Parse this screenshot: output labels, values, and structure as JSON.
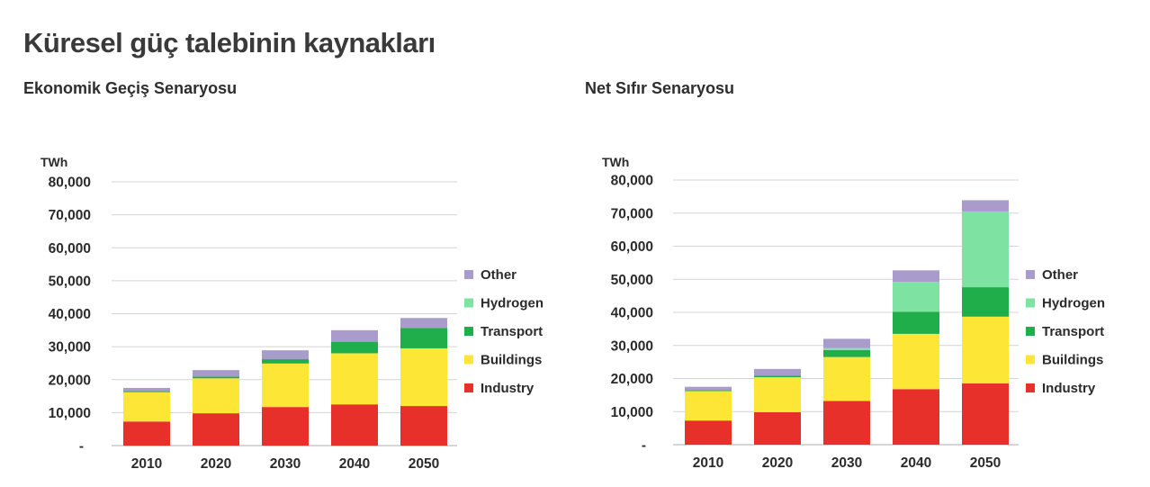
{
  "title": "Küresel güç talebinin kaynakları",
  "colors": {
    "Industry": "#e8302a",
    "Buildings": "#fde636",
    "Transport": "#1fae4a",
    "Hydrogen": "#7ee2a2",
    "Other": "#a99bcc"
  },
  "chart_data": [
    {
      "type": "bar",
      "stacked": true,
      "title": "Ekonomik Geçiş Senaryosu",
      "ylabel": "TWh",
      "xlabel": "",
      "ylim": [
        0,
        80000
      ],
      "yticks": [
        0,
        10000,
        20000,
        30000,
        40000,
        50000,
        60000,
        70000,
        80000
      ],
      "ytick_labels": [
        "-",
        "10,000",
        "20,000",
        "30,000",
        "40,000",
        "50,000",
        "60,000",
        "70,000",
        "80,000"
      ],
      "grid": true,
      "legend_position": "right",
      "legend_order": [
        "Other",
        "Hydrogen",
        "Transport",
        "Buildings",
        "Industry"
      ],
      "categories": [
        "2010",
        "2020",
        "2030",
        "2040",
        "2050"
      ],
      "series": [
        {
          "name": "Industry",
          "values": [
            7300,
            9800,
            11700,
            12500,
            12000
          ]
        },
        {
          "name": "Buildings",
          "values": [
            8900,
            10600,
            13200,
            15500,
            17500
          ]
        },
        {
          "name": "Transport",
          "values": [
            300,
            500,
            1300,
            3500,
            6200
          ]
        },
        {
          "name": "Hydrogen",
          "values": [
            0,
            0,
            0,
            0,
            0
          ]
        },
        {
          "name": "Other",
          "values": [
            1000,
            2000,
            2700,
            3500,
            3000
          ]
        }
      ]
    },
    {
      "type": "bar",
      "stacked": true,
      "title": "Net Sıfır Senaryosu",
      "ylabel": "TWh",
      "xlabel": "",
      "ylim": [
        0,
        80000
      ],
      "yticks": [
        0,
        10000,
        20000,
        30000,
        40000,
        50000,
        60000,
        70000,
        80000
      ],
      "ytick_labels": [
        "-",
        "10,000",
        "20,000",
        "30,000",
        "40,000",
        "50,000",
        "60,000",
        "70,000",
        "80,000"
      ],
      "grid": true,
      "legend_position": "right",
      "legend_order": [
        "Other",
        "Hydrogen",
        "Transport",
        "Buildings",
        "Industry"
      ],
      "categories": [
        "2010",
        "2020",
        "2030",
        "2040",
        "2050"
      ],
      "series": [
        {
          "name": "Industry",
          "values": [
            7300,
            9800,
            13200,
            16800,
            18500
          ]
        },
        {
          "name": "Buildings",
          "values": [
            8900,
            10600,
            13300,
            16700,
            20200
          ]
        },
        {
          "name": "Transport",
          "values": [
            300,
            500,
            2100,
            6700,
            8900
          ]
        },
        {
          "name": "Hydrogen",
          "values": [
            0,
            0,
            600,
            9000,
            22900
          ]
        },
        {
          "name": "Other",
          "values": [
            1000,
            2000,
            2800,
            3500,
            3400
          ]
        }
      ]
    }
  ]
}
